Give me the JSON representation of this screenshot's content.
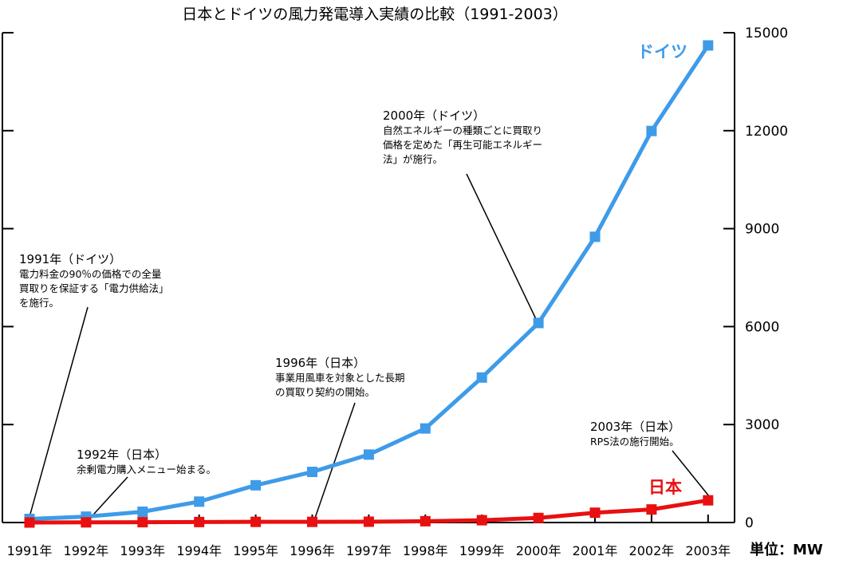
{
  "chart_data": {
    "type": "line",
    "title": "日本とドイツの風力発電導入実績の比較（1991-2003）",
    "unit_label": "単位：MW",
    "categories": [
      "1991年",
      "1992年",
      "1993年",
      "1994年",
      "1995年",
      "1996年",
      "1997年",
      "1998年",
      "1999年",
      "2000年",
      "2001年",
      "2002年",
      "2003年"
    ],
    "y_ticks": [
      "0",
      "3000",
      "6000",
      "9000",
      "12000",
      "15000"
    ],
    "ylim": [
      0,
      15000
    ],
    "grid": false,
    "series": [
      {
        "name": "ドイツ",
        "color": "#3e9be8",
        "values": [
          110,
          180,
          330,
          640,
          1140,
          1550,
          2080,
          2880,
          4440,
          6110,
          8750,
          11990,
          14610
        ]
      },
      {
        "name": "日本",
        "color": "#e81010",
        "values": [
          0,
          5,
          10,
          15,
          20,
          20,
          25,
          40,
          70,
          140,
          300,
          400,
          680
        ]
      }
    ],
    "annotations": [
      {
        "head": "1991年（ドイツ）",
        "lines": [
          "電力料金の90％の価格での全量",
          "買取りを保証する「電力供給法」",
          "を施行。"
        ]
      },
      {
        "head": "1992年（日本）",
        "lines": [
          "余剰電力購入メニュー始まる。"
        ]
      },
      {
        "head": "1996年（日本）",
        "lines": [
          "事業用風車を対象とした長期",
          "の買取り契約の開始。"
        ]
      },
      {
        "head": "2000年（ドイツ）",
        "lines": [
          "自然エネルギーの種類ごとに買取り",
          "価格を定めた「再生可能エネルギー",
          "法」が施行。"
        ]
      },
      {
        "head": "2003年（日本）",
        "lines": [
          "RPS法の施行開始。"
        ]
      }
    ]
  }
}
